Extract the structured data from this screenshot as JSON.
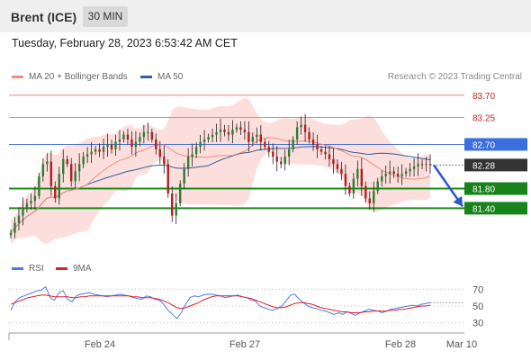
{
  "header": {
    "title": "Brent (ICE)",
    "timeframe": "30 MIN"
  },
  "timestamp": "Tuesday, February 28, 2023 6:53:42 AM CET",
  "legend": {
    "ma20": "MA 20 + Bollinger Bands",
    "ma50": "MA 50"
  },
  "credit": "Research © 2023 Trading Central",
  "rsi_legend": {
    "rsi": "RSI",
    "ma9": "9MA"
  },
  "colors": {
    "ma20": "#f28b82",
    "ma50": "#2f5f9e",
    "bollinger_band": "#fbd9d7",
    "candle_up": "#2e7d32",
    "candle_down": "#b71c1c",
    "resistance": "#f08080",
    "pivot": "#4a74d8",
    "support": "#1b8a1b",
    "last_price": "#333333",
    "arrow": "#2d57c8",
    "rsi": "#4f7ae3",
    "rsi_ma": "#d9232d"
  },
  "chart_data": [
    {
      "type": "candlestick",
      "title": "Brent (ICE)",
      "timeframe": "30 MIN",
      "ylim": [
        80.6,
        83.9
      ],
      "x_ticks": [
        "Feb 24",
        "Feb 27",
        "Feb 28",
        "Mar 10"
      ],
      "last_price": 82.28,
      "levels": [
        {
          "value": 83.7,
          "label": "83.70",
          "kind": "resistance"
        },
        {
          "value": 83.25,
          "label": "83.25",
          "kind": "resistance"
        },
        {
          "value": 82.7,
          "label": "82.70",
          "kind": "pivot"
        },
        {
          "value": 81.8,
          "label": "81.80",
          "kind": "support"
        },
        {
          "value": 81.4,
          "label": "81.40",
          "kind": "support"
        }
      ],
      "forecast_direction": "down",
      "forecast_target": 81.4,
      "price_path": [
        80.9,
        81.1,
        81.25,
        81.4,
        81.5,
        81.55,
        81.65,
        82.05,
        82.3,
        82.35,
        81.85,
        81.6,
        82.1,
        82.4,
        82.3,
        81.95,
        82.15,
        82.3,
        82.45,
        82.5,
        82.55,
        82.6,
        82.55,
        82.65,
        82.7,
        82.6,
        82.75,
        82.8,
        82.9,
        82.8,
        82.65,
        82.75,
        82.85,
        82.95,
        82.95,
        82.8,
        82.6,
        82.45,
        82.3,
        81.7,
        81.25,
        81.5,
        81.9,
        82.2,
        82.45,
        82.5,
        82.65,
        82.75,
        82.8,
        82.85,
        82.9,
        82.95,
        83.0,
        82.95,
        82.9,
        83.0,
        83.05,
        83.0,
        82.95,
        82.75,
        82.85,
        82.9,
        82.75,
        82.65,
        82.55,
        82.45,
        82.35,
        82.3,
        82.45,
        82.6,
        82.8,
        83.05,
        83.1,
        82.95,
        82.8,
        82.7,
        82.6,
        82.55,
        82.5,
        82.4,
        82.3,
        82.2,
        82.1,
        81.85,
        81.7,
        82.0,
        82.2,
        81.85,
        81.6,
        81.5,
        81.75,
        81.95,
        82.05,
        82.1,
        82.15,
        82.1,
        82.05,
        82.1,
        82.15,
        82.2,
        82.25,
        82.3,
        82.28,
        82.3,
        82.28
      ]
    },
    {
      "type": "line",
      "title": "RSI",
      "series_names": [
        "RSI",
        "9MA"
      ],
      "y_ticks": [
        70,
        50,
        30
      ],
      "ylim": [
        20,
        80
      ],
      "rsi": [
        45,
        55,
        60,
        62,
        64,
        66,
        68,
        69,
        73,
        60,
        57,
        66,
        68,
        58,
        55,
        62,
        64,
        65,
        66,
        64,
        63,
        62,
        61,
        62,
        63,
        64,
        63,
        62,
        60,
        59,
        58,
        62,
        61,
        58,
        57,
        52,
        45,
        40,
        35,
        42,
        52,
        60,
        62,
        61,
        63,
        64,
        64,
        63,
        62,
        60,
        61,
        62,
        63,
        61,
        60,
        57,
        56,
        50,
        48,
        46,
        45,
        47,
        50,
        56,
        63,
        64,
        58,
        54,
        50,
        48,
        47,
        45,
        44,
        42,
        40,
        42,
        40,
        43,
        41,
        39,
        42,
        44,
        46,
        45,
        44,
        42,
        44,
        46,
        47,
        48,
        49,
        50,
        51,
        50,
        52,
        53,
        54
      ],
      "rsi_ma": [
        52,
        54,
        56,
        58,
        60,
        61,
        62,
        63,
        63,
        62,
        61,
        61,
        61,
        61,
        60,
        60,
        61,
        61,
        62,
        62,
        62,
        62,
        62,
        62,
        62,
        62,
        62,
        62,
        61,
        61,
        60,
        60,
        60,
        59,
        58,
        56,
        54,
        51,
        48,
        47,
        48,
        50,
        52,
        54,
        57,
        59,
        61,
        62,
        62,
        62,
        62,
        62,
        62,
        61,
        60,
        59,
        57,
        55,
        53,
        51,
        49,
        48,
        48,
        49,
        51,
        53,
        54,
        54,
        53,
        52,
        50,
        48,
        47,
        46,
        45,
        44,
        43,
        43,
        42,
        42,
        42,
        43,
        43,
        44,
        44,
        44,
        44,
        45,
        45,
        46,
        46,
        47,
        48,
        49,
        50,
        50,
        51
      ]
    }
  ]
}
